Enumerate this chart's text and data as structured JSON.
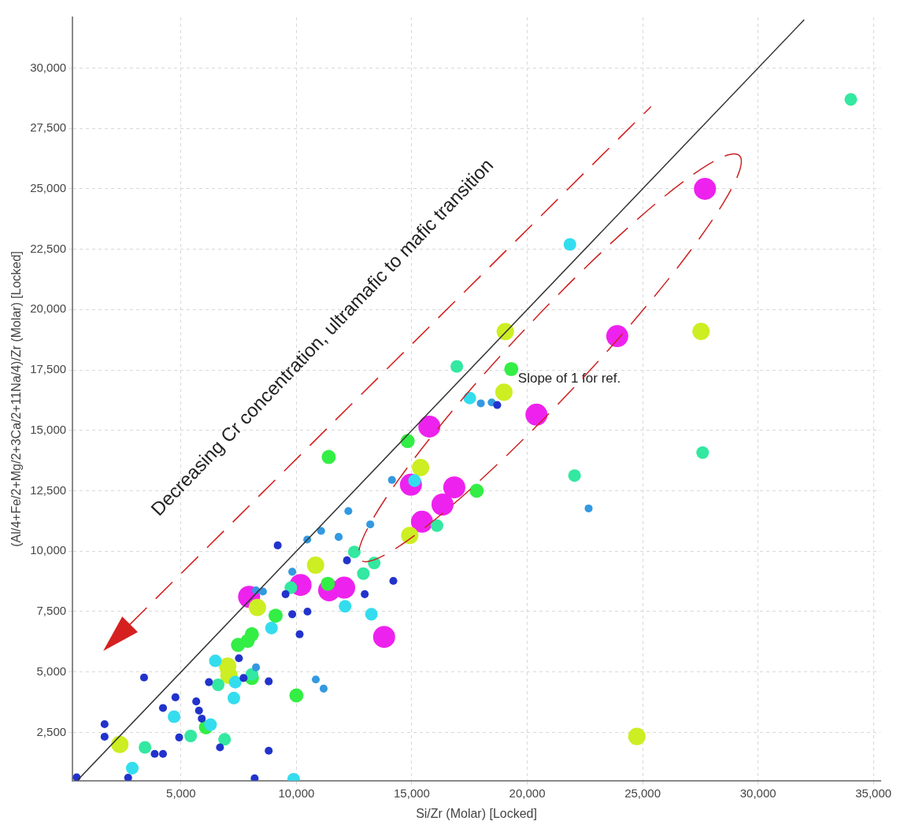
{
  "chart_data": {
    "type": "bubble",
    "xlabel": "Si/Zr (Molar) [Locked]",
    "ylabel": "(Al/4+Fe/2+Mg/2+3Ca/2+11Na/4)/Zr (Molar) [Locked]",
    "xlim": [
      300,
      35300
    ],
    "ylim": [
      500,
      32100
    ],
    "xticks": [
      {
        "value": 5000,
        "label": "5,000"
      },
      {
        "value": 10000,
        "label": "10,000"
      },
      {
        "value": 15000,
        "label": "15,000"
      },
      {
        "value": 20000,
        "label": "20,000"
      },
      {
        "value": 25000,
        "label": "25,000"
      },
      {
        "value": 30000,
        "label": "30,000"
      },
      {
        "value": 35000,
        "label": "35,000"
      }
    ],
    "yticks": [
      {
        "value": 2500,
        "label": "2,500"
      },
      {
        "value": 5000,
        "label": "5,000"
      },
      {
        "value": 7500,
        "label": "7,500"
      },
      {
        "value": 10000,
        "label": "10,000"
      },
      {
        "value": 12500,
        "label": "12,500"
      },
      {
        "value": 15000,
        "label": "15,000"
      },
      {
        "value": 17500,
        "label": "17,500"
      },
      {
        "value": 20000,
        "label": "20,000"
      },
      {
        "value": 22500,
        "label": "22,500"
      },
      {
        "value": 25000,
        "label": "25,000"
      },
      {
        "value": 27500,
        "label": "27,500"
      },
      {
        "value": 30000,
        "label": "30,000"
      }
    ],
    "grid": true,
    "legend": false,
    "annotations": [
      "Decreasing Cr concentration, ultramafic to mafic transition",
      "Slope of 1 for ref."
    ],
    "series": [
      {
        "type": "line",
        "color": "#333333",
        "x": [
          500,
          32000
        ],
        "values": [
          500,
          32000
        ]
      },
      {
        "color": "#2233cc",
        "x": [
          18700,
          9190,
          12190,
          14200,
          9530,
          12960,
          9820,
          10480,
          10140,
          7510,
          7710,
          6210,
          8800,
          3400,
          4760,
          5660,
          5780,
          5900,
          4220,
          4920,
          6690,
          8800,
          1690,
          1690,
          3860,
          4220,
          2710,
          480,
          8190
        ],
        "values": [
          16050,
          10240,
          9620,
          8770,
          8220,
          8220,
          7390,
          7500,
          6560,
          5570,
          4750,
          4580,
          4610,
          4770,
          3950,
          3780,
          3400,
          3070,
          3510,
          2290,
          1880,
          1740,
          2840,
          2320,
          1610,
          1610,
          620,
          640,
          600
        ],
        "sizes": [
          0.13,
          0.13,
          0.13,
          0.13,
          0.13,
          0.13,
          0.13,
          0.13,
          0.13,
          0.13,
          0.13,
          0.13,
          0.13,
          0.13,
          0.13,
          0.13,
          0.13,
          0.13,
          0.13,
          0.13,
          0.13,
          0.13,
          0.13,
          0.13,
          0.13,
          0.13,
          0.13,
          0.13,
          0.13
        ]
      },
      {
        "color": "#3399e0",
        "x": [
          17990,
          18460,
          22660,
          14140,
          12250,
          13200,
          11070,
          10470,
          11830,
          9820,
          8550,
          8250,
          10840,
          11180,
          8250
        ],
        "values": [
          16120,
          16160,
          11770,
          12950,
          11660,
          11110,
          10840,
          10480,
          10590,
          9150,
          8330,
          8380,
          4690,
          4310,
          5190
        ],
        "sizes": [
          0.13,
          0.13,
          0.13,
          0.13,
          0.13,
          0.13,
          0.13,
          0.13,
          0.13,
          0.13,
          0.13,
          0.13,
          0.13,
          0.13,
          0.13
        ]
      },
      {
        "color": "#33ddee",
        "x": [
          21850,
          17510,
          15120,
          8920,
          12110,
          13250,
          6490,
          7350,
          7290,
          4700,
          6280,
          2890,
          9880
        ],
        "values": [
          22700,
          16340,
          12920,
          6820,
          7720,
          7390,
          5460,
          4580,
          3920,
          3150,
          2820,
          1020,
          560
        ],
        "sizes": [
          0.33,
          0.33,
          0.33,
          0.33,
          0.33,
          0.33,
          0.33,
          0.33,
          0.33,
          0.33,
          0.33,
          0.33,
          0.33
        ]
      },
      {
        "color": "#33e8a0",
        "x": [
          34020,
          27600,
          22050,
          16950,
          16090,
          12510,
          13370,
          12900,
          9760,
          8070,
          6610,
          5420,
          6890,
          3440
        ],
        "values": [
          28700,
          14080,
          13130,
          17650,
          11060,
          9970,
          9510,
          9070,
          8490,
          4900,
          4470,
          2350,
          2210,
          1880
        ],
        "sizes": [
          0.33,
          0.33,
          0.33,
          0.33,
          0.33,
          0.33,
          0.33,
          0.33,
          0.33,
          0.33,
          0.33,
          0.33,
          0.33,
          0.33
        ]
      },
      {
        "color": "#33ee44",
        "x": [
          19310,
          14820,
          11400,
          17810,
          11360,
          9100,
          8070,
          7890,
          7470,
          8070,
          10000,
          6080
        ],
        "values": [
          17540,
          14560,
          13900,
          12500,
          8650,
          7330,
          6560,
          6290,
          6120,
          4750,
          4030,
          2710
        ],
        "sizes": [
          0.41,
          0.41,
          0.41,
          0.41,
          0.41,
          0.41,
          0.41,
          0.41,
          0.41,
          0.41,
          0.41,
          0.41
        ]
      },
      {
        "color": "#ccee22",
        "x": [
          19050,
          27530,
          18990,
          15380,
          14910,
          10830,
          8310,
          7020,
          7080,
          2350,
          24750
        ],
        "values": [
          19090,
          19100,
          16580,
          13460,
          10650,
          9420,
          7670,
          5240,
          4860,
          2000,
          2330
        ],
        "sizes": [
          0.62,
          0.62,
          0.62,
          0.62,
          0.62,
          0.62,
          0.62,
          0.62,
          0.62,
          0.62,
          0.62
        ]
      },
      {
        "color": "#ee22ee",
        "x": [
          27700,
          23900,
          20400,
          15760,
          14960,
          16840,
          16330,
          15440,
          10180,
          11420,
          12070,
          7950,
          13800
        ],
        "values": [
          25000,
          18900,
          15650,
          15160,
          12750,
          12640,
          11930,
          11220,
          8600,
          8380,
          8490,
          8110,
          6450
        ],
        "sizes": [
          1,
          1,
          1,
          1,
          1,
          1,
          1,
          1,
          1,
          1,
          1,
          1,
          1
        ]
      }
    ]
  }
}
